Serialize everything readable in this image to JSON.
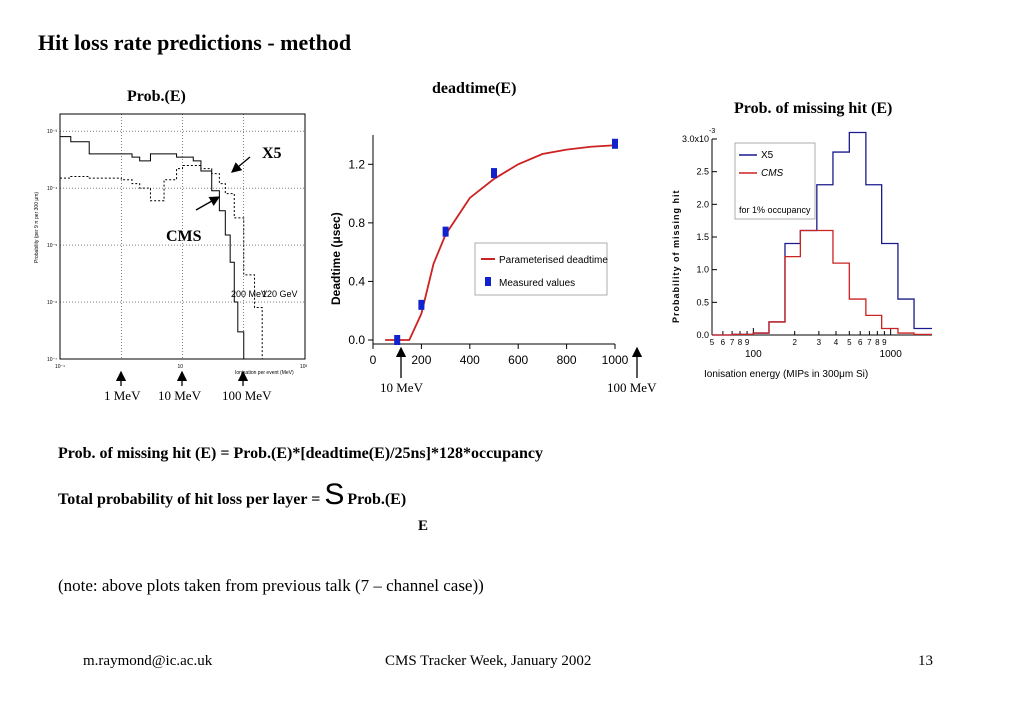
{
  "slide": {
    "title": "Hit loss rate predictions - method"
  },
  "panels": {
    "prob": {
      "heading": "Prob.(E)",
      "annotations": {
        "x5": "X5",
        "cms": "CMS",
        "mev200": "200 MeV",
        "gev120": "120 GeV"
      },
      "energy_markers": [
        "1 MeV",
        "10 MeV",
        "100 MeV"
      ]
    },
    "deadtime": {
      "heading": "deadtime(E)",
      "energy_markers": [
        "10 MeV",
        "100 MeV"
      ]
    },
    "missing": {
      "heading": "Prob. of missing hit (E)"
    }
  },
  "text": {
    "formula": "Prob. of missing hit (E) = Prob.(E)*[deadtime(E)/25ns]*128*occupancy",
    "total_prefix": "Total probability of hit loss per layer = ",
    "sigma": "S",
    "total_suffix": "Prob.(E)",
    "sum_index": "E",
    "note": "(note: above plots taken from previous talk (7 – channel case))"
  },
  "footer": {
    "email": "m.raymond@ic.ac.uk",
    "event": "CMS Tracker Week, January 2002",
    "page": "13"
  },
  "chart_data": [
    {
      "type": "line",
      "xscale": "log",
      "yscale": "log",
      "xlim": [
        0.1,
        1000
      ],
      "ylim": [
        1e-07,
        0.002
      ],
      "x_ticks": [
        "10⁻¹",
        "10",
        "10³"
      ],
      "y_ticks": [
        "10⁻³",
        "10⁻⁴",
        "10⁻⁵",
        "10⁻⁶",
        "10⁻⁷"
      ],
      "xlabel": "Ionisation per event (MeV)",
      "ylabel": "Probability (per 9 π per 300 μm)",
      "series": [
        {
          "name": "CMS",
          "style": "solid",
          "x": [
            0.1,
            0.15,
            0.3,
            1,
            1.5,
            2,
            3,
            5,
            8,
            10,
            15,
            20,
            30,
            40,
            50,
            60,
            70,
            80,
            100
          ],
          "y": [
            0.0008,
            0.00065,
            0.0004,
            0.0004,
            0.00035,
            0.0003,
            0.0004,
            0.0004,
            0.00035,
            0.00035,
            0.0003,
            0.0002,
            9e-05,
            4e-05,
            1.5e-05,
            5e-06,
            1e-06,
            3e-07,
            1e-07
          ]
        },
        {
          "name": "X5",
          "style": "dashed",
          "x": [
            0.1,
            0.15,
            0.3,
            1,
            1.5,
            2,
            3,
            5,
            8,
            10,
            15,
            20,
            30,
            40,
            50,
            70,
            100,
            150,
            200
          ],
          "y": [
            0.00015,
            0.00016,
            0.00015,
            0.00014,
            0.00012,
            0.0001,
            6e-05,
            0.00014,
            0.00022,
            0.00025,
            0.00025,
            0.00022,
            0.00018,
            0.00012,
            8e-05,
            3e-05,
            3e-06,
            8e-07,
            1e-07
          ]
        }
      ]
    },
    {
      "type": "line",
      "xlabel": "",
      "ylabel": "Deadtime (μsec)",
      "xlim": [
        0,
        1000
      ],
      "ylim": [
        0,
        1.4
      ],
      "x_ticks": [
        0,
        200,
        400,
        600,
        800,
        1000
      ],
      "y_ticks": [
        "0.0",
        "0.4",
        "0.8",
        "1.2"
      ],
      "legend_position": "center-right",
      "series": [
        {
          "name": "Parameterised deadtime",
          "color": "#cc2222",
          "x": [
            50,
            100,
            150,
            200,
            250,
            300,
            400,
            500,
            600,
            700,
            800,
            900,
            1000
          ],
          "y": [
            0.0,
            0.0,
            0.0,
            0.18,
            0.52,
            0.72,
            0.97,
            1.1,
            1.2,
            1.27,
            1.3,
            1.32,
            1.33
          ]
        },
        {
          "name": "Measured values",
          "color": "#1122cc",
          "marker": "square",
          "x": [
            100,
            200,
            300,
            500,
            1000
          ],
          "y": [
            0.0,
            0.24,
            0.74,
            1.14,
            1.34
          ]
        }
      ]
    },
    {
      "type": "line",
      "xscale": "log",
      "xlim": [
        50,
        2000
      ],
      "ylim": [
        0,
        3.0
      ],
      "y_multiplier": "x10⁻³",
      "y_ticks": [
        "0.0",
        "0.5",
        "1.0",
        "1.5",
        "2.0",
        "2.5",
        "3.0x10"
      ],
      "x_tick_labels": [
        "5",
        "6",
        "7",
        "8",
        "9",
        "2",
        "3",
        "4",
        "5",
        "6",
        "7",
        "8",
        "9"
      ],
      "x_major_labels": [
        "100",
        "1000"
      ],
      "xlabel": "Ionisation energy (MIPs in 300μm Si)",
      "ylabel": "Probability of missing hit",
      "legend_position": "top-left",
      "legend_note": "for 1% occupancy",
      "series": [
        {
          "name": "X5",
          "color": "#1a1a8c",
          "style": "step",
          "x": [
            50,
            70,
            100,
            130,
            170,
            220,
            290,
            380,
            500,
            660,
            860,
            1130,
            1480,
            2000
          ],
          "y": [
            0,
            0.01,
            0.03,
            0.2,
            1.4,
            1.6,
            2.3,
            2.8,
            3.1,
            2.3,
            1.4,
            0.55,
            0.1,
            0.1
          ]
        },
        {
          "name": "CMS",
          "color": "#cc2222",
          "style": "step",
          "x": [
            50,
            70,
            100,
            130,
            170,
            220,
            290,
            380,
            500,
            660,
            860,
            1130,
            1480,
            2000
          ],
          "y": [
            0,
            0.01,
            0.03,
            0.2,
            1.2,
            1.6,
            1.6,
            1.1,
            0.55,
            0.3,
            0.1,
            0.03,
            0.01,
            0.01
          ]
        }
      ]
    }
  ]
}
